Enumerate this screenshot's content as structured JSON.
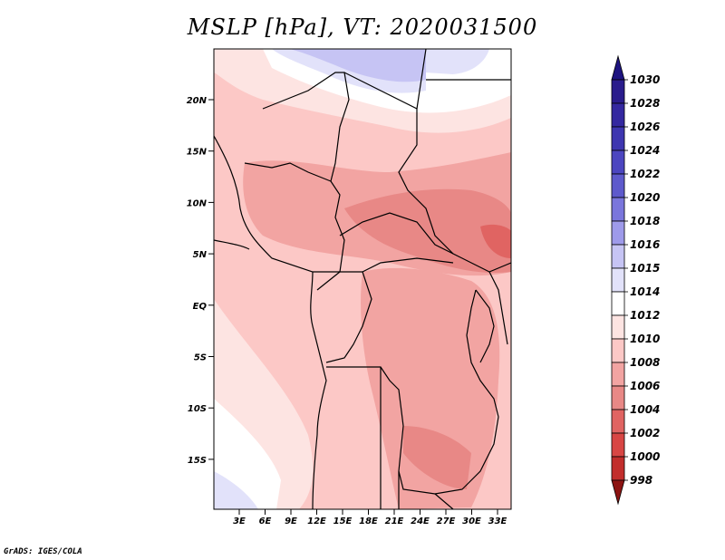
{
  "title": "MSLP [hPa], VT: 2020031500",
  "credit": "GrADS: IGES/COLA",
  "map": {
    "lat_labels": [
      "20N",
      "15N",
      "10N",
      "5N",
      "EQ",
      "5S",
      "10S",
      "15S"
    ],
    "lon_labels": [
      "3E",
      "6E",
      "9E",
      "12E",
      "15E",
      "18E",
      "21E",
      "24E",
      "27E",
      "30E",
      "33E"
    ]
  },
  "colorbar": {
    "levels": [
      {
        "label": "1030",
        "color": "#2a1c8c"
      },
      {
        "label": "1028",
        "color": "#3428a0"
      },
      {
        "label": "1026",
        "color": "#3e36b0"
      },
      {
        "label": "1024",
        "color": "#4c46c0"
      },
      {
        "label": "1022",
        "color": "#5e5acc"
      },
      {
        "label": "1020",
        "color": "#7a76dc"
      },
      {
        "label": "1018",
        "color": "#9e9aea"
      },
      {
        "label": "1016",
        "color": "#c6c4f4"
      },
      {
        "label": "1015",
        "color": "#e2e2fa"
      },
      {
        "label": "1014",
        "color": "#ffffff"
      },
      {
        "label": "1012",
        "color": "#fde4e2"
      },
      {
        "label": "1010",
        "color": "#fcc8c6"
      },
      {
        "label": "1008",
        "color": "#f2a4a2"
      },
      {
        "label": "1006",
        "color": "#e88886"
      },
      {
        "label": "1004",
        "color": "#e06462"
      },
      {
        "label": "1002",
        "color": "#d84644"
      },
      {
        "label": "1000",
        "color": "#c22e2c"
      },
      {
        "label": "998",
        "color": "#a81c1a"
      }
    ],
    "top_arrow_color": "#1e1480",
    "bottom_arrow_color": "#8c1412"
  }
}
